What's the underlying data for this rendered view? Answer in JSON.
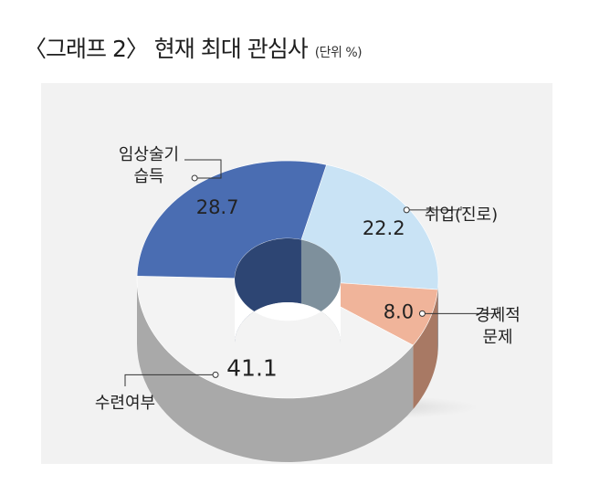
{
  "title": "〈그래프 2〉 현재 최대 관심사",
  "unit": "(단위 %)",
  "chart_data": {
    "type": "pie",
    "variant": "donut-3d",
    "title": "〈그래프 2〉 현재 최대 관심사",
    "unit": "(단위 %)",
    "categories": [
      "취업(진로)",
      "경제적 문제",
      "수련여부",
      "임상술기 습득"
    ],
    "values": [
      22.2,
      8.0,
      41.1,
      28.7
    ],
    "value_labels": [
      "22.2",
      "8.0",
      "41.1",
      "28.7"
    ],
    "colors": [
      "#c9e3f5",
      "#f0b49a",
      "#f3f3f3",
      "#4a6db2"
    ],
    "side_colors": [
      "#7e909c",
      "#a87964",
      "#a9a9a9",
      "#2d4573"
    ],
    "label_lines": [
      [
        "취업(진로)"
      ],
      [
        "경제적",
        "문제"
      ],
      [
        "수련여부"
      ],
      [
        "임상술기",
        "습득"
      ]
    ],
    "legend": "callout-labels"
  }
}
